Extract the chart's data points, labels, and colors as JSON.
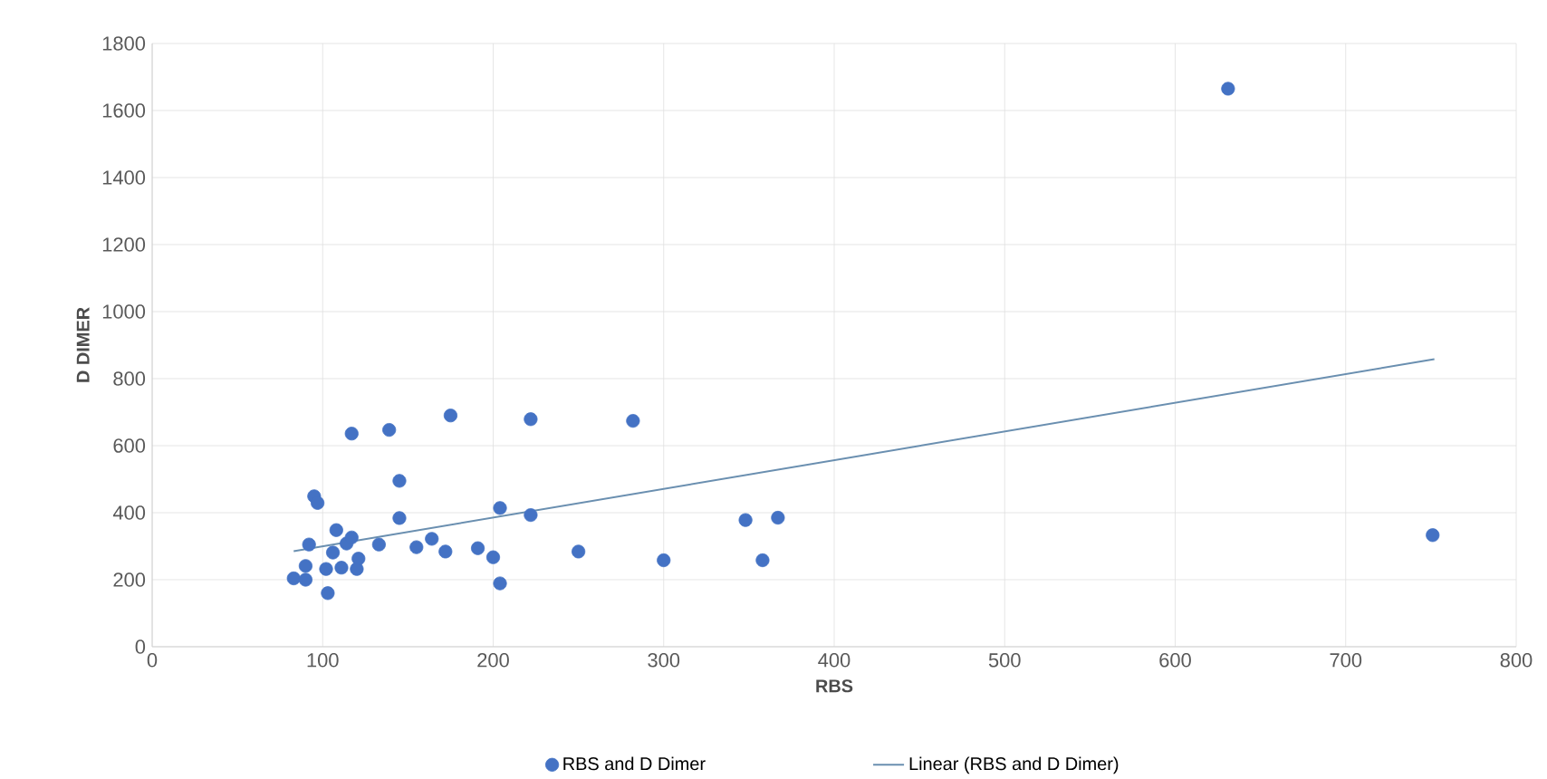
{
  "chart_data": {
    "type": "scatter",
    "xlabel": "RBS",
    "ylabel": "D DIMER",
    "xlim": [
      0,
      800
    ],
    "ylim": [
      0,
      1800
    ],
    "xticks": [
      0,
      100,
      200,
      300,
      400,
      500,
      600,
      700,
      800
    ],
    "yticks": [
      0,
      200,
      400,
      600,
      800,
      1000,
      1200,
      1400,
      1600,
      1800
    ],
    "grid": true,
    "legend": "bottom",
    "series": [
      {
        "name": "RBS and D Dimer",
        "color": "#4472c4",
        "marker": "circle",
        "x": [
          83,
          90,
          90,
          92,
          95,
          97,
          103,
          102,
          106,
          108,
          111,
          114,
          117,
          120,
          121,
          117,
          133,
          139,
          145,
          145,
          155,
          164,
          172,
          175,
          191,
          200,
          204,
          204,
          222,
          222,
          250,
          282,
          300,
          348,
          367,
          358,
          631,
          751
        ],
        "values": [
          204,
          200,
          241,
          305,
          449,
          429,
          160,
          232,
          281,
          348,
          236,
          308,
          326,
          232,
          263,
          636,
          305,
          647,
          495,
          384,
          297,
          322,
          284,
          690,
          294,
          267,
          414,
          189,
          393,
          679,
          284,
          674,
          258,
          378,
          385,
          258,
          1665,
          333
        ]
      },
      {
        "name": "Linear (RBS and D Dimer)",
        "type": "line",
        "color": "#6a8fb0",
        "marker": "none",
        "x": [
          83,
          752
        ],
        "values": [
          285,
          858
        ]
      }
    ]
  }
}
